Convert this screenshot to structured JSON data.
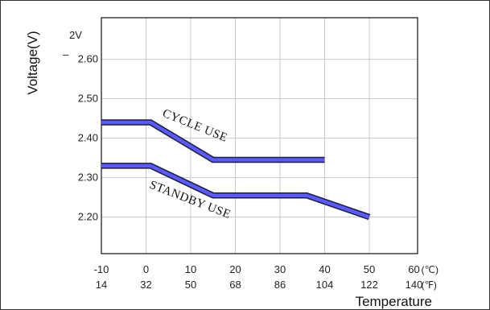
{
  "chart_data": {
    "type": "line",
    "title": "",
    "ylabel": "Voltage(V)",
    "xlabel": "Temperature",
    "ylabel_unit": "2V",
    "y_ticks": [
      "2.60",
      "2.50",
      "2.40",
      "2.30",
      "2.20"
    ],
    "x_ticks_c": [
      "-10",
      "0",
      "10",
      "20",
      "30",
      "40",
      "50",
      "60"
    ],
    "x_ticks_f": [
      "14",
      "32",
      "50",
      "68",
      "86",
      "104",
      "122",
      "140"
    ],
    "x_unit_c": "(℃)",
    "x_unit_f": "(℉)",
    "xlim": [
      -10,
      60
    ],
    "ylim": [
      2.1,
      2.7
    ],
    "grid": true,
    "legend": "none",
    "series": [
      {
        "label": "CYCLE USE",
        "x": [
          -10,
          1,
          15,
          40
        ],
        "y": [
          2.44,
          2.44,
          2.345,
          2.345
        ],
        "color": "#5b5bf0"
      },
      {
        "label": "STANDBY USE",
        "x": [
          -10,
          1,
          15,
          36,
          50
        ],
        "y": [
          2.33,
          2.33,
          2.255,
          2.255,
          2.2
        ],
        "color": "#5b5bf0"
      }
    ]
  }
}
